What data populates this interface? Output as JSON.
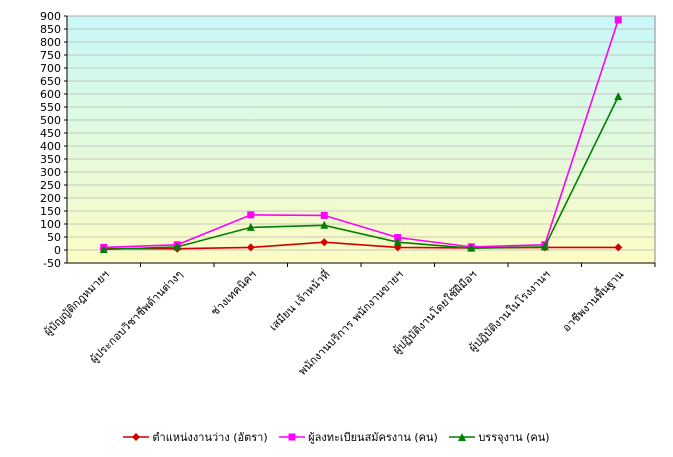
{
  "chart_data": {
    "type": "line",
    "categories": [
      "ผู้บัญญัติกฎหมายฯ",
      "ผู้ประกอบวิชาชีพด้านต่างๆ",
      "ช่างเทคนิคฯ",
      "เสมียน เจ้าหน้าที่",
      "พนักงานบริการ พนักงานขายฯ",
      "ผู้ปฏิบัติงานโดยใช้ฝีมือฯ",
      "ผู้ปฏิบัติงานในโรงงานฯ",
      "อาชีพงานพื้นฐาน"
    ],
    "series": [
      {
        "name": "ตำแหน่งงานว่าง (อัตรา)",
        "color": "#d40000",
        "marker": "diamond",
        "values": [
          5,
          5,
          10,
          30,
          10,
          8,
          10,
          10
        ]
      },
      {
        "name": "ผู้ลงทะเบียนสมัครงาน (คน)",
        "color": "#ff00ff",
        "marker": "square",
        "values": [
          10,
          20,
          135,
          133,
          48,
          12,
          20,
          885
        ]
      },
      {
        "name": "บรรจุงาน (คน)",
        "color": "#008000",
        "marker": "triangle",
        "values": [
          2,
          12,
          87,
          95,
          30,
          7,
          12,
          590
        ]
      }
    ],
    "yticks": [
      -50,
      0,
      50,
      100,
      150,
      200,
      250,
      300,
      350,
      400,
      450,
      500,
      550,
      600,
      650,
      700,
      750,
      800,
      850,
      900
    ],
    "ylim": [
      -50,
      900
    ],
    "legend_position": "bottom",
    "plot_background": "gradient cyan-to-yellow"
  }
}
